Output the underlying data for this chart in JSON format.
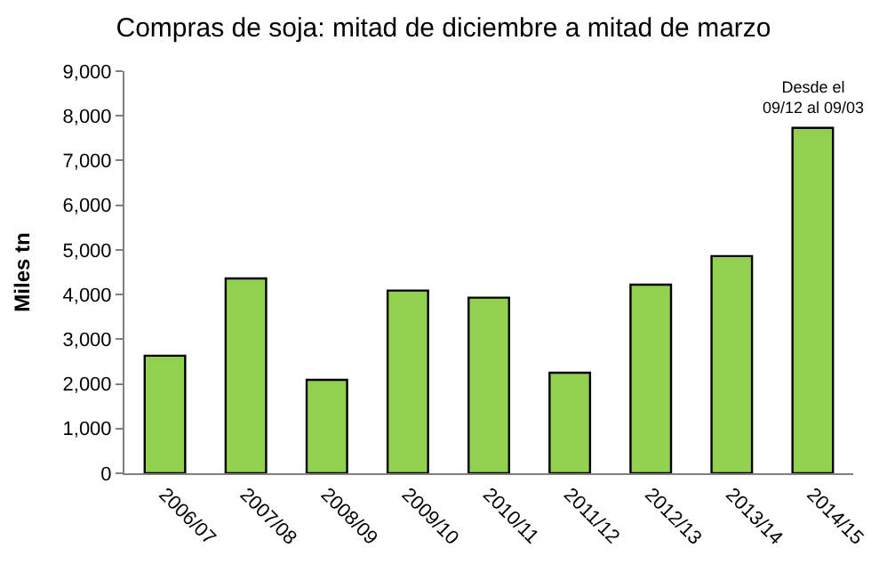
{
  "chart_data": {
    "type": "bar",
    "title": "Compras de soja: mitad de diciembre a mitad de marzo",
    "ylabel": "Miles tn",
    "categories": [
      "2006/07",
      "2007/08",
      "2008/09",
      "2009/10",
      "2010/11",
      "2011/12",
      "2012/13",
      "2013/14",
      "2014/15"
    ],
    "values": [
      2630,
      4360,
      2090,
      4090,
      3930,
      2250,
      4220,
      4860,
      7730
    ],
    "color": "#92d050",
    "ylim": [
      0,
      9000
    ],
    "yticks": [
      {
        "value": 0,
        "label": "0"
      },
      {
        "value": 1000,
        "label": "1,000"
      },
      {
        "value": 2000,
        "label": "2,000"
      },
      {
        "value": 3000,
        "label": "3,000"
      },
      {
        "value": 4000,
        "label": "4,000"
      },
      {
        "value": 5000,
        "label": "5,000"
      },
      {
        "value": 6000,
        "label": "6,000"
      },
      {
        "value": 7000,
        "label": "7,000"
      },
      {
        "value": 8000,
        "label": "8,000"
      },
      {
        "value": 9000,
        "label": "9,000"
      }
    ],
    "grid": false,
    "annotations": [
      {
        "text": "Desde el\n09/12 al 09/03",
        "x": "2014/15",
        "y": 7730
      }
    ]
  }
}
